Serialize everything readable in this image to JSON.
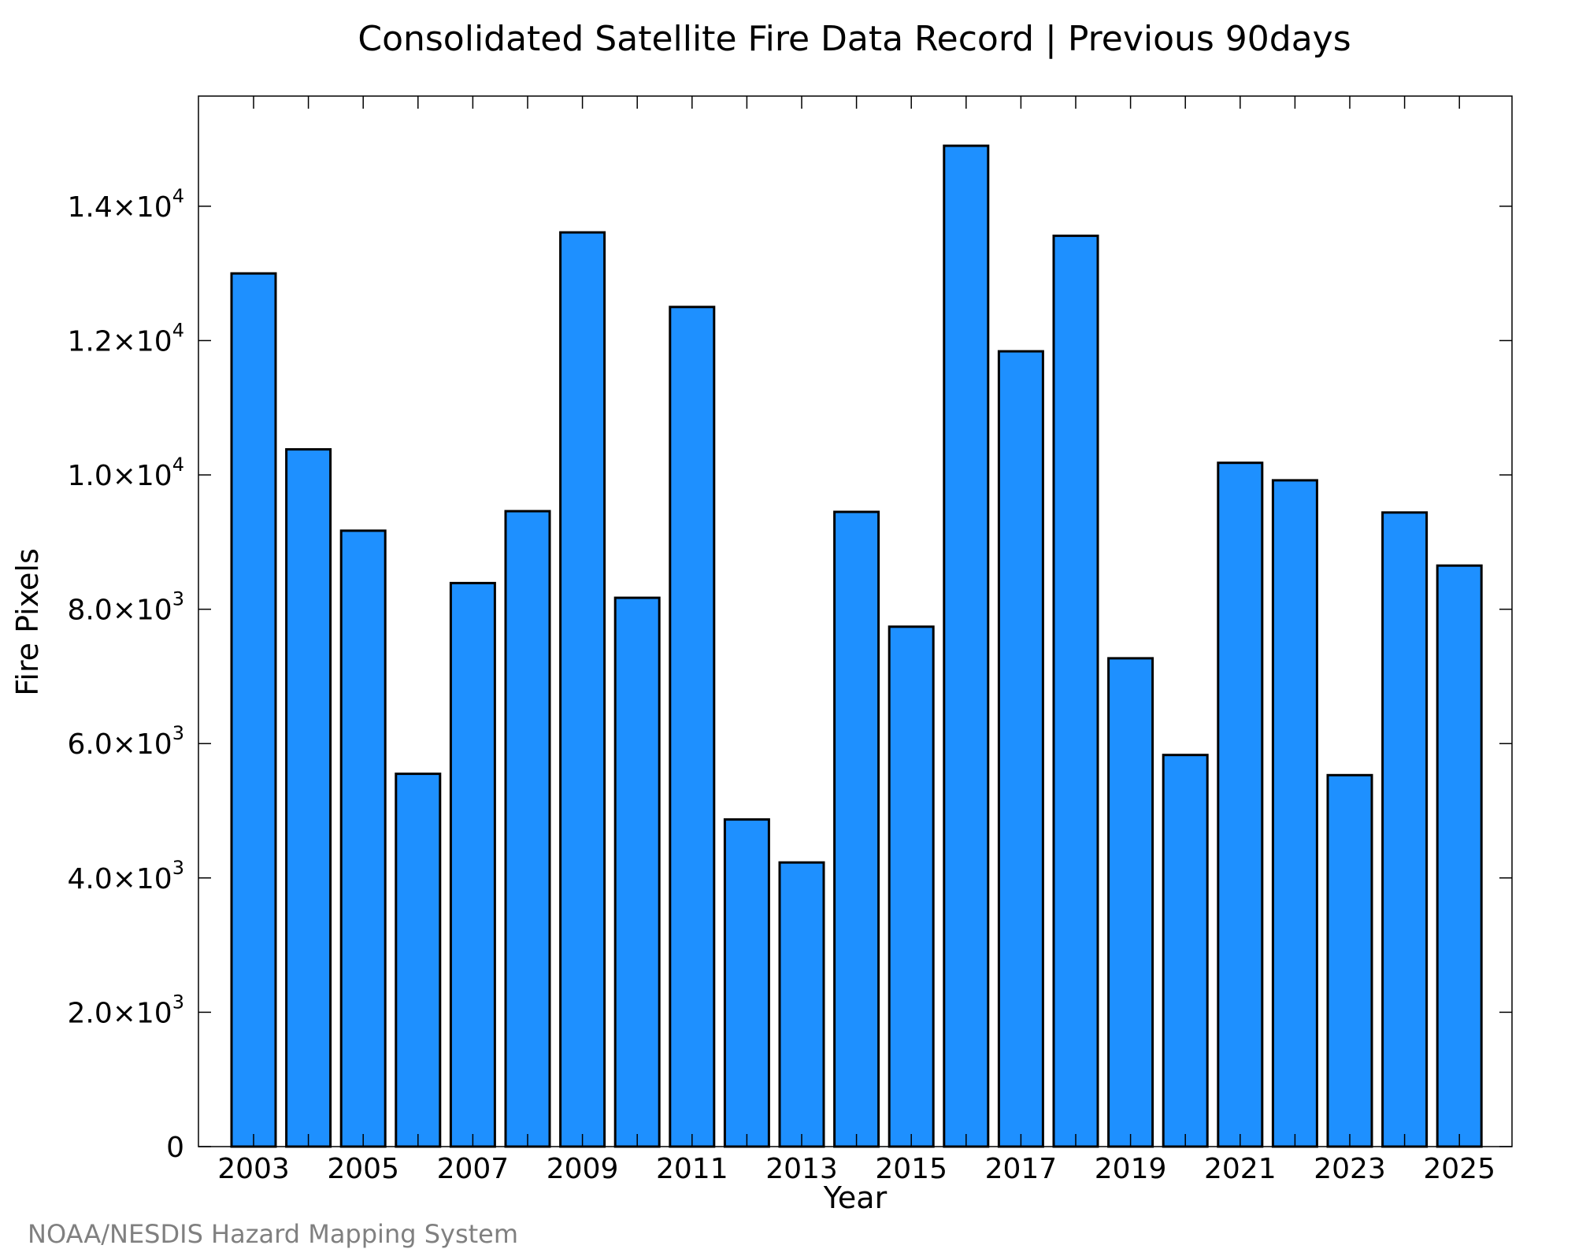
{
  "chart_data": {
    "type": "bar",
    "title": "Consolidated Satellite Fire Data Record | Previous 90days",
    "xlabel": "Year",
    "ylabel": "Fire Pixels",
    "categories": [
      "2003",
      "2004",
      "2005",
      "2006",
      "2007",
      "2008",
      "2009",
      "2010",
      "2011",
      "2012",
      "2013",
      "2014",
      "2015",
      "2016",
      "2017",
      "2018",
      "2019",
      "2020",
      "2021",
      "2022",
      "2023",
      "2024",
      "2025"
    ],
    "values": [
      13000,
      10380,
      9170,
      5550,
      8390,
      9460,
      13610,
      8170,
      12500,
      4870,
      4230,
      9450,
      7740,
      14900,
      11840,
      13560,
      7270,
      5830,
      10180,
      9920,
      5530,
      9440,
      8650
    ],
    "ylim": [
      0,
      15640
    ],
    "xtick_labels": [
      "2003",
      "2005",
      "2007",
      "2009",
      "2011",
      "2013",
      "2015",
      "2017",
      "2019",
      "2021",
      "2023",
      "2025"
    ],
    "yticks": [
      {
        "value": 0,
        "mantissa": "0",
        "exp": ""
      },
      {
        "value": 2000,
        "mantissa": "2.0×10",
        "exp": "3"
      },
      {
        "value": 4000,
        "mantissa": "4.0×10",
        "exp": "3"
      },
      {
        "value": 6000,
        "mantissa": "6.0×10",
        "exp": "3"
      },
      {
        "value": 8000,
        "mantissa": "8.0×10",
        "exp": "3"
      },
      {
        "value": 10000,
        "mantissa": "1.0×10",
        "exp": "4"
      },
      {
        "value": 12000,
        "mantissa": "1.2×10",
        "exp": "4"
      },
      {
        "value": 14000,
        "mantissa": "1.4×10",
        "exp": "4"
      }
    ],
    "bar_color": "#1E90FF",
    "bar_edge_color": "#000000",
    "grid": false,
    "legend": "none"
  },
  "credit": "NOAA/NESDIS Hazard Mapping System"
}
